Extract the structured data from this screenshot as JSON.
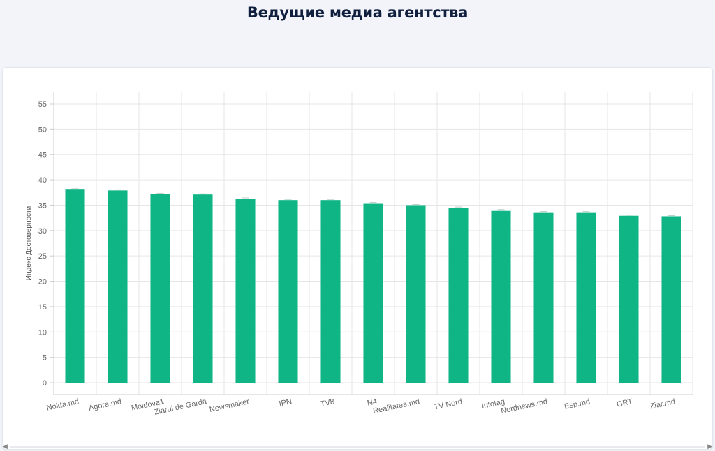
{
  "page": {
    "title": "Ведущие медиа агентства"
  },
  "colors": {
    "bar": "#10b585",
    "grid": "#e6e6e6",
    "axis": "#cccccc",
    "tick_text": "#666666"
  },
  "chart_data": {
    "type": "bar",
    "ylabel": "Индекс Достоверности",
    "xlabel": "",
    "ylim": [
      0,
      55
    ],
    "yticks": [
      0,
      5,
      10,
      15,
      20,
      25,
      30,
      35,
      40,
      45,
      50,
      55
    ],
    "grid": true,
    "legend": "none",
    "categories": [
      "Nokta.md",
      "Agora.md",
      "Moldova1",
      "Ziarul de Gardă",
      "Newsmaker",
      "IPN",
      "TV8",
      "N4",
      "Realitatea.md",
      "TV Nord",
      "Infotag",
      "Nordnews.md",
      "Esp.md",
      "GRT",
      "Ziar.md"
    ],
    "values": [
      38.2,
      37.9,
      37.2,
      37.1,
      36.3,
      36.0,
      36.0,
      35.4,
      35.0,
      34.5,
      34.0,
      33.6,
      33.6,
      32.9,
      32.8
    ]
  },
  "scrollbar": {
    "left_icon": "arrow-left-icon",
    "right_icon": "arrow-right-icon",
    "left_glyph": "◀",
    "right_glyph": "▶"
  }
}
